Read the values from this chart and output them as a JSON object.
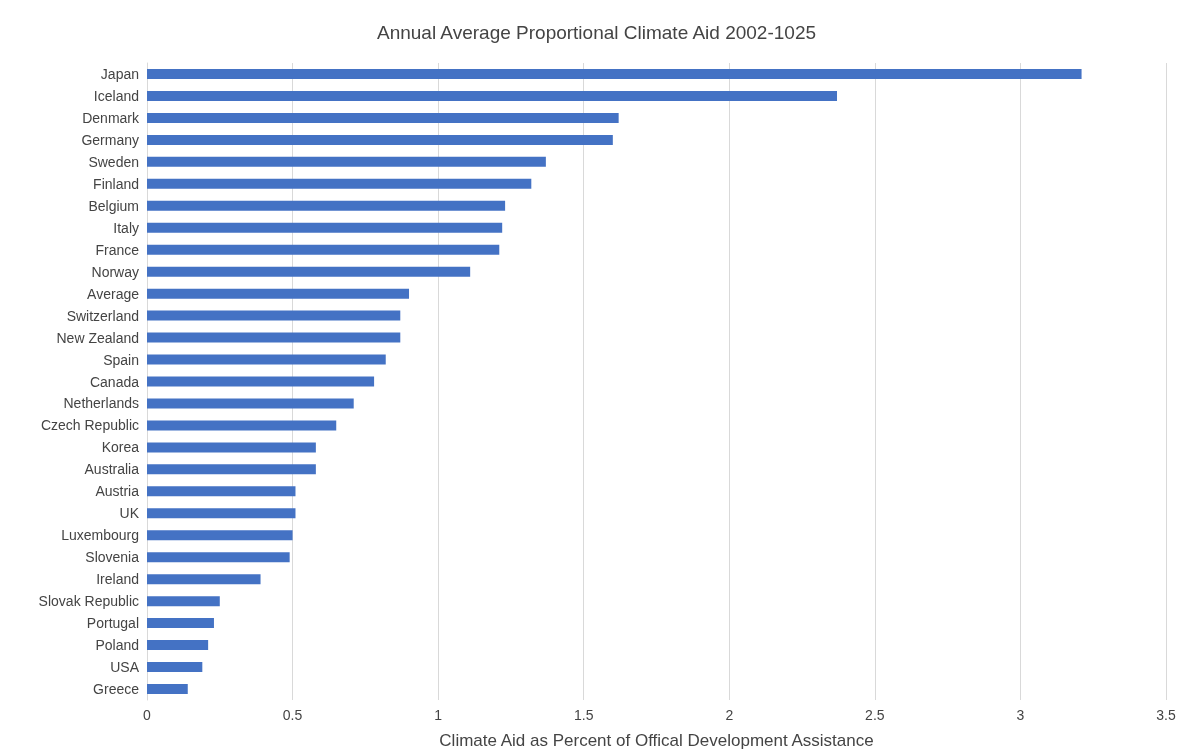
{
  "chart_data": {
    "type": "bar",
    "orientation": "horizontal",
    "title": "Annual Average Proportional Climate Aid 2002-1025",
    "xlabel": "Climate Aid as Percent of Offical Development Assistance",
    "categories": [
      "Japan",
      "Iceland",
      "Denmark",
      "Germany",
      "Sweden",
      "Finland",
      "Belgium",
      "Italy",
      "France",
      "Norway",
      "Average",
      "Switzerland",
      "New Zealand",
      "Spain",
      "Canada",
      "Netherlands",
      "Czech Republic",
      "Korea",
      "Australia",
      "Austria",
      "UK",
      "Luxembourg",
      "Slovenia",
      "Ireland",
      "Slovak Republic",
      "Portugal",
      "Poland",
      "USA",
      "Greece"
    ],
    "values": [
      3.21,
      2.37,
      1.62,
      1.6,
      1.37,
      1.32,
      1.23,
      1.22,
      1.21,
      1.11,
      0.9,
      0.87,
      0.87,
      0.82,
      0.78,
      0.71,
      0.65,
      0.58,
      0.58,
      0.51,
      0.51,
      0.5,
      0.49,
      0.39,
      0.25,
      0.23,
      0.21,
      0.19,
      0.14
    ],
    "color": "#4472c4",
    "xlim": [
      0,
      3.5
    ],
    "xticks": [
      0,
      0.5,
      1,
      1.5,
      2,
      2.5,
      3,
      3.5
    ],
    "grid": "x"
  }
}
